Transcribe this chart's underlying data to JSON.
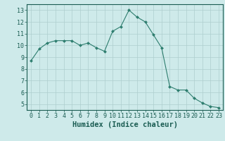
{
  "x": [
    0,
    1,
    2,
    3,
    4,
    5,
    6,
    7,
    8,
    9,
    10,
    11,
    12,
    13,
    14,
    15,
    16,
    17,
    18,
    19,
    20,
    21,
    22,
    23
  ],
  "y": [
    8.7,
    9.7,
    10.2,
    10.4,
    10.4,
    10.4,
    10.0,
    10.2,
    9.8,
    9.5,
    11.2,
    11.6,
    13.0,
    12.4,
    12.0,
    10.9,
    9.8,
    6.5,
    6.2,
    6.2,
    5.5,
    5.1,
    4.8,
    4.7
  ],
  "line_color": "#2d7d6e",
  "marker": "D",
  "marker_size": 2,
  "bg_color": "#ceeaea",
  "grid_color": "#aecece",
  "xlabel": "Humidex (Indice chaleur)",
  "ylim": [
    4.5,
    13.5
  ],
  "xlim": [
    -0.5,
    23.5
  ],
  "yticks": [
    5,
    6,
    7,
    8,
    9,
    10,
    11,
    12,
    13
  ],
  "xticks": [
    0,
    1,
    2,
    3,
    4,
    5,
    6,
    7,
    8,
    9,
    10,
    11,
    12,
    13,
    14,
    15,
    16,
    17,
    18,
    19,
    20,
    21,
    22,
    23
  ],
  "font_color": "#1a5c52",
  "tick_fontsize": 6,
  "label_fontsize": 7.5
}
